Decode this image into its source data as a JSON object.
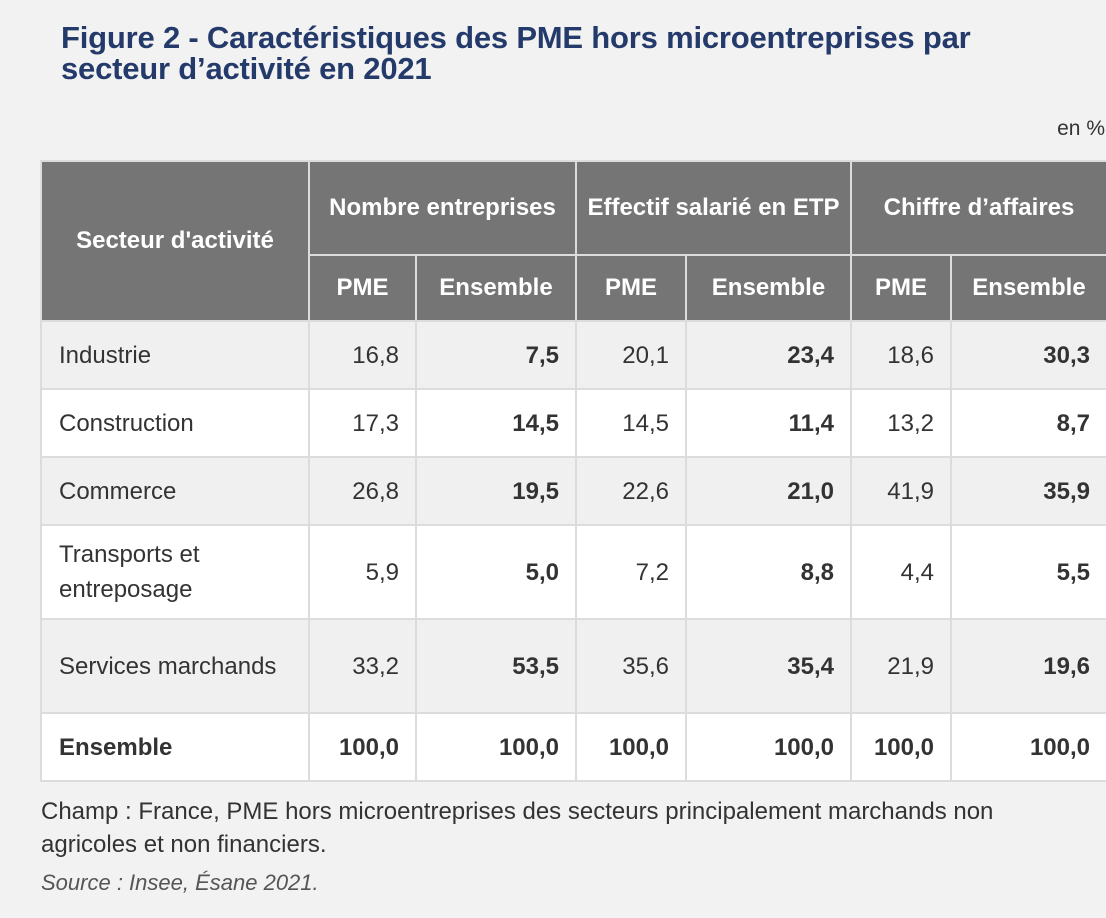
{
  "title": "Figure 2 - Caractéristiques des PME hors microentreprises par secteur d’activité en 2021",
  "unit": "en %",
  "table": {
    "sector_header": "Secteur d'activité",
    "groups": [
      "Nombre entreprises",
      "Effectif salarié en ETP",
      "Chiffre d’affaires"
    ],
    "sub_headers": [
      "PME",
      "Ensemble",
      "PME",
      "Ensemble",
      "PME",
      "Ensemble"
    ],
    "rows": [
      {
        "sector": "Industrie",
        "values": [
          "16,8",
          "7,5",
          "20,1",
          "23,4",
          "18,6",
          "30,3"
        ]
      },
      {
        "sector": "Construction",
        "values": [
          "17,3",
          "14,5",
          "14,5",
          "11,4",
          "13,2",
          "8,7"
        ]
      },
      {
        "sector": "Commerce",
        "values": [
          "26,8",
          "19,5",
          "22,6",
          "21,0",
          "41,9",
          "35,9"
        ]
      },
      {
        "sector": "Transports et entreposage",
        "values": [
          "5,9",
          "5,0",
          "7,2",
          "8,8",
          "4,4",
          "5,5"
        ]
      },
      {
        "sector": "Services marchands",
        "values": [
          "33,2",
          "53,5",
          "35,6",
          "35,4",
          "21,9",
          "19,6"
        ]
      },
      {
        "sector": "Ensemble",
        "values": [
          "100,0",
          "100,0",
          "100,0",
          "100,0",
          "100,0",
          "100,0"
        ]
      }
    ]
  },
  "note": "Champ : France, PME hors microentreprises des secteurs principalement marchands non agricoles et non financiers.",
  "source": "Source : Insee, Ésane 2021."
}
